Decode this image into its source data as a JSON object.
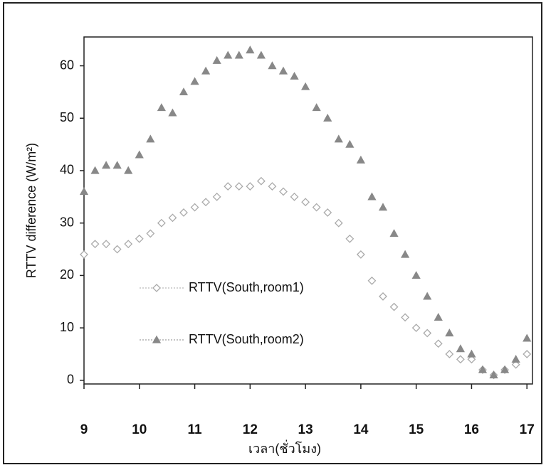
{
  "chart_data": {
    "type": "scatter",
    "x_label": "เวลา(ชั่วโมง)",
    "y_label": "RTTV difference (W/m²)",
    "x": [
      9,
      9.2,
      9.4,
      9.6,
      9.8,
      10,
      10.2,
      10.4,
      10.6,
      10.8,
      11,
      11.2,
      11.4,
      11.6,
      11.8,
      12,
      12.2,
      12.4,
      12.6,
      12.8,
      13,
      13.2,
      13.4,
      13.6,
      13.8,
      14,
      14.2,
      14.4,
      14.6,
      14.8,
      15,
      15.2,
      15.4,
      15.6,
      15.8,
      16,
      16.2,
      16.4,
      16.6,
      16.8,
      17
    ],
    "series": [
      {
        "name": "RTTV(South,room1)",
        "color": "#aaaaaa",
        "marker": "diamond",
        "values": [
          24,
          26,
          26,
          25,
          26,
          27,
          28,
          30,
          31,
          32,
          33,
          34,
          35,
          37,
          37,
          37,
          38,
          37,
          36,
          35,
          34,
          33,
          32,
          30,
          27,
          24,
          19,
          16,
          14,
          12,
          10,
          9,
          7,
          5,
          4,
          4,
          2,
          1,
          2,
          3,
          5
        ]
      },
      {
        "name": "RTTV(South,room2)",
        "color": "#888888",
        "marker": "triangle",
        "values": [
          36,
          40,
          41,
          41,
          40,
          43,
          46,
          52,
          51,
          55,
          57,
          59,
          61,
          62,
          62,
          63,
          62,
          60,
          59,
          58,
          56,
          52,
          50,
          46,
          45,
          42,
          35,
          33,
          28,
          24,
          20,
          16,
          12,
          9,
          6,
          5,
          2,
          1,
          2,
          4,
          8
        ]
      }
    ],
    "xlim": [
      9,
      17.1
    ],
    "xticks": [
      9,
      10,
      11,
      12,
      13,
      14,
      15,
      16,
      17
    ],
    "ylim": [
      -0.7,
      65.5
    ],
    "yticks": [
      0,
      10,
      20,
      30,
      40,
      50,
      60
    ]
  }
}
